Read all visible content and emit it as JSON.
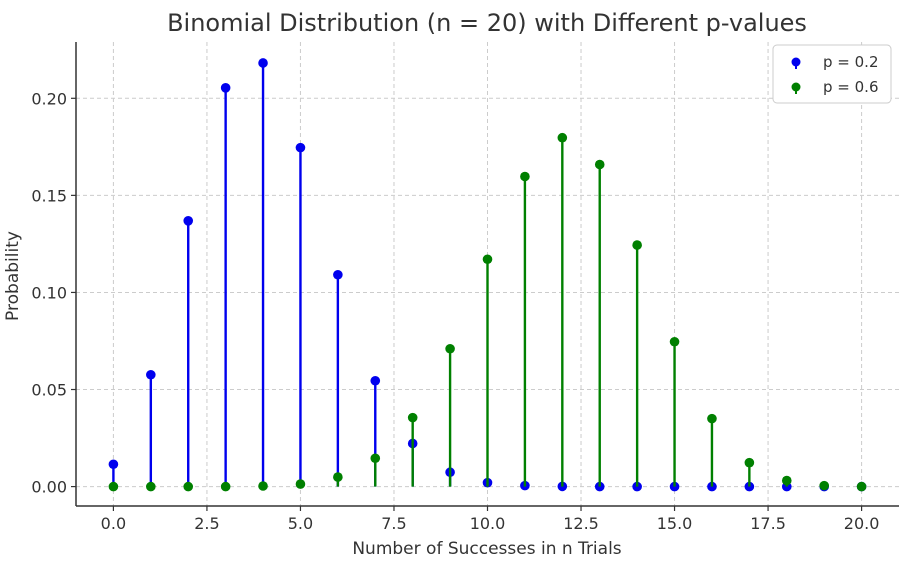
{
  "chart_data": {
    "type": "stem",
    "title": "Binomial Distribution (n = 20) with Different p-values",
    "xlabel": "Number of Successes in n Trials",
    "ylabel": "Probability",
    "xlim": [
      -1,
      21
    ],
    "ylim": [
      -0.01,
      0.229
    ],
    "xticks": [
      0.0,
      2.5,
      5.0,
      7.5,
      10.0,
      12.5,
      15.0,
      17.5,
      20.0
    ],
    "xtick_labels": [
      "0.0",
      "2.5",
      "5.0",
      "7.5",
      "10.0",
      "12.5",
      "15.0",
      "17.5",
      "20.0"
    ],
    "yticks": [
      0.0,
      0.05,
      0.1,
      0.15,
      0.2
    ],
    "ytick_labels": [
      "0.00",
      "0.05",
      "0.10",
      "0.15",
      "0.20"
    ],
    "grid": true,
    "legend_position": "top-right",
    "x": [
      0,
      1,
      2,
      3,
      4,
      5,
      6,
      7,
      8,
      9,
      10,
      11,
      12,
      13,
      14,
      15,
      16,
      17,
      18,
      19,
      20
    ],
    "series": [
      {
        "name": "p = 0.2",
        "color": "#0000ee",
        "values": [
          0.0115,
          0.0576,
          0.1369,
          0.2054,
          0.2182,
          0.1746,
          0.1091,
          0.0545,
          0.0222,
          0.0074,
          0.002,
          0.0005,
          0.0001,
          0.0,
          0.0,
          0.0,
          0.0,
          0.0,
          0.0,
          0.0,
          0.0
        ]
      },
      {
        "name": "p = 0.6",
        "color": "#008000",
        "values": [
          0.0,
          0.0,
          0.0,
          0.0,
          0.0003,
          0.0013,
          0.0049,
          0.0146,
          0.0355,
          0.071,
          0.1171,
          0.1597,
          0.1797,
          0.1659,
          0.1244,
          0.0746,
          0.035,
          0.0123,
          0.0031,
          0.0005,
          0.0
        ]
      }
    ]
  }
}
